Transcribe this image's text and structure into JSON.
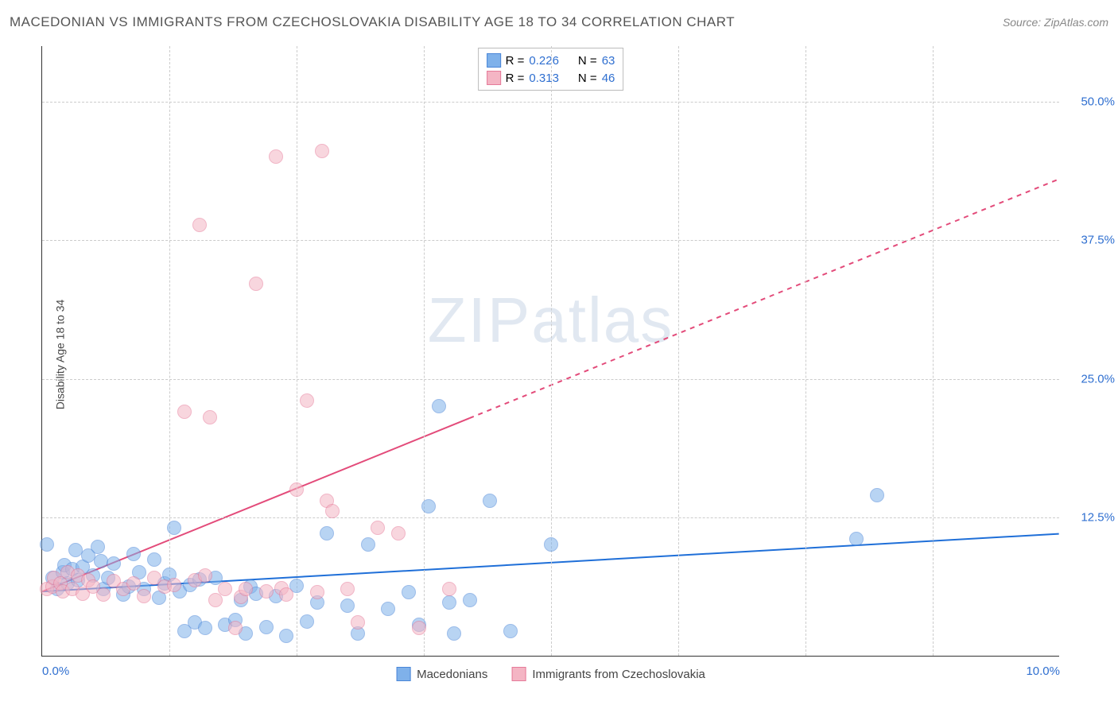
{
  "header": {
    "title": "MACEDONIAN VS IMMIGRANTS FROM CZECHOSLOVAKIA DISABILITY AGE 18 TO 34 CORRELATION CHART",
    "source": "Source: ZipAtlas.com"
  },
  "watermark": "ZIPatlas",
  "y_axis": {
    "label": "Disability Age 18 to 34"
  },
  "chart": {
    "type": "scatter",
    "xlim": [
      0,
      10
    ],
    "ylim": [
      0,
      55
    ],
    "x_ticks_major": [
      0,
      10
    ],
    "x_ticks_minor": [
      1.25,
      2.5,
      3.75,
      5.0,
      6.25,
      7.5,
      8.75
    ],
    "y_ticks": [
      12.5,
      25.0,
      37.5,
      50.0
    ],
    "x_tick_labels": {
      "left": "0.0%",
      "right": "10.0%"
    },
    "y_tick_labels": [
      "12.5%",
      "25.0%",
      "37.5%",
      "50.0%"
    ],
    "grid_color": "#cccccc",
    "tick_color": "#2f6fd0",
    "background": "#ffffff",
    "marker_radius": 9,
    "marker_border": 1,
    "series": [
      {
        "name": "Macedonians",
        "fill": "#7fb1ea",
        "stroke": "#4a86d8",
        "opacity": 0.55,
        "R": "0.226",
        "N": "63",
        "trend": {
          "x1": 0,
          "y1": 5.8,
          "x2": 10,
          "y2": 11.0,
          "solid_until_x": 10,
          "color": "#1f6fd8",
          "width": 2
        },
        "points": [
          [
            0.05,
            10.0
          ],
          [
            0.1,
            7.0
          ],
          [
            0.15,
            6.0
          ],
          [
            0.2,
            7.5
          ],
          [
            0.22,
            8.2
          ],
          [
            0.25,
            6.5
          ],
          [
            0.3,
            7.8
          ],
          [
            0.33,
            9.5
          ],
          [
            0.35,
            6.8
          ],
          [
            0.4,
            8.0
          ],
          [
            0.45,
            9.0
          ],
          [
            0.5,
            7.2
          ],
          [
            0.55,
            9.8
          ],
          [
            0.58,
            8.5
          ],
          [
            0.6,
            6.0
          ],
          [
            0.65,
            7.0
          ],
          [
            0.7,
            8.3
          ],
          [
            0.8,
            5.5
          ],
          [
            0.85,
            6.2
          ],
          [
            0.9,
            9.2
          ],
          [
            0.95,
            7.5
          ],
          [
            1.0,
            6.0
          ],
          [
            1.1,
            8.7
          ],
          [
            1.15,
            5.2
          ],
          [
            1.2,
            6.5
          ],
          [
            1.25,
            7.3
          ],
          [
            1.3,
            11.5
          ],
          [
            1.35,
            5.8
          ],
          [
            1.4,
            2.2
          ],
          [
            1.45,
            6.4
          ],
          [
            1.5,
            3.0
          ],
          [
            1.55,
            6.9
          ],
          [
            1.6,
            2.5
          ],
          [
            1.7,
            7.0
          ],
          [
            1.8,
            2.8
          ],
          [
            1.9,
            3.2
          ],
          [
            1.95,
            5.0
          ],
          [
            2.0,
            2.0
          ],
          [
            2.05,
            6.2
          ],
          [
            2.1,
            5.6
          ],
          [
            2.2,
            2.6
          ],
          [
            2.3,
            5.4
          ],
          [
            2.4,
            1.8
          ],
          [
            2.5,
            6.3
          ],
          [
            2.6,
            3.1
          ],
          [
            2.7,
            4.8
          ],
          [
            2.8,
            11.0
          ],
          [
            3.0,
            4.5
          ],
          [
            3.1,
            2.0
          ],
          [
            3.2,
            10.0
          ],
          [
            3.4,
            4.2
          ],
          [
            3.6,
            5.7
          ],
          [
            3.7,
            2.8
          ],
          [
            3.8,
            13.5
          ],
          [
            3.9,
            22.5
          ],
          [
            4.0,
            4.8
          ],
          [
            4.05,
            2.0
          ],
          [
            4.2,
            5.0
          ],
          [
            4.4,
            14.0
          ],
          [
            4.6,
            2.2
          ],
          [
            5.0,
            10.0
          ],
          [
            8.0,
            10.5
          ],
          [
            8.2,
            14.5
          ]
        ]
      },
      {
        "name": "Immigrants from Czechoslovakia",
        "fill": "#f4b5c4",
        "stroke": "#e67a99",
        "opacity": 0.55,
        "R": "0.313",
        "N": "46",
        "trend": {
          "x1": 0,
          "y1": 5.8,
          "x2": 10,
          "y2": 43.0,
          "solid_until_x": 4.2,
          "color": "#e34b7a",
          "width": 2
        },
        "points": [
          [
            0.05,
            6.0
          ],
          [
            0.1,
            6.2
          ],
          [
            0.12,
            7.0
          ],
          [
            0.18,
            6.5
          ],
          [
            0.2,
            5.8
          ],
          [
            0.25,
            7.5
          ],
          [
            0.3,
            6.0
          ],
          [
            0.35,
            7.2
          ],
          [
            0.4,
            5.6
          ],
          [
            0.45,
            6.8
          ],
          [
            0.5,
            6.2
          ],
          [
            0.6,
            5.5
          ],
          [
            0.7,
            6.7
          ],
          [
            0.8,
            6.0
          ],
          [
            0.9,
            6.5
          ],
          [
            1.0,
            5.4
          ],
          [
            1.1,
            7.0
          ],
          [
            1.2,
            6.2
          ],
          [
            1.3,
            6.4
          ],
          [
            1.4,
            22.0
          ],
          [
            1.5,
            6.8
          ],
          [
            1.55,
            38.8
          ],
          [
            1.6,
            7.2
          ],
          [
            1.65,
            21.5
          ],
          [
            1.7,
            5.0
          ],
          [
            1.8,
            6.0
          ],
          [
            1.9,
            2.5
          ],
          [
            1.95,
            5.3
          ],
          [
            2.0,
            6.0
          ],
          [
            2.1,
            33.5
          ],
          [
            2.2,
            5.8
          ],
          [
            2.3,
            45.0
          ],
          [
            2.35,
            6.1
          ],
          [
            2.4,
            5.5
          ],
          [
            2.5,
            15.0
          ],
          [
            2.6,
            23.0
          ],
          [
            2.7,
            5.7
          ],
          [
            2.75,
            45.5
          ],
          [
            2.8,
            14.0
          ],
          [
            2.85,
            13.0
          ],
          [
            3.0,
            6.0
          ],
          [
            3.1,
            3.0
          ],
          [
            3.3,
            11.5
          ],
          [
            3.5,
            11.0
          ],
          [
            3.7,
            2.5
          ],
          [
            4.0,
            6.0
          ]
        ]
      }
    ],
    "legend_top": {
      "rows": [
        {
          "swatch": 0,
          "r_label": "R =",
          "n_label": "N ="
        },
        {
          "swatch": 1,
          "r_label": "R =",
          "n_label": "N ="
        }
      ]
    },
    "legend_bottom": [
      {
        "swatch": 0
      },
      {
        "swatch": 1
      }
    ]
  }
}
